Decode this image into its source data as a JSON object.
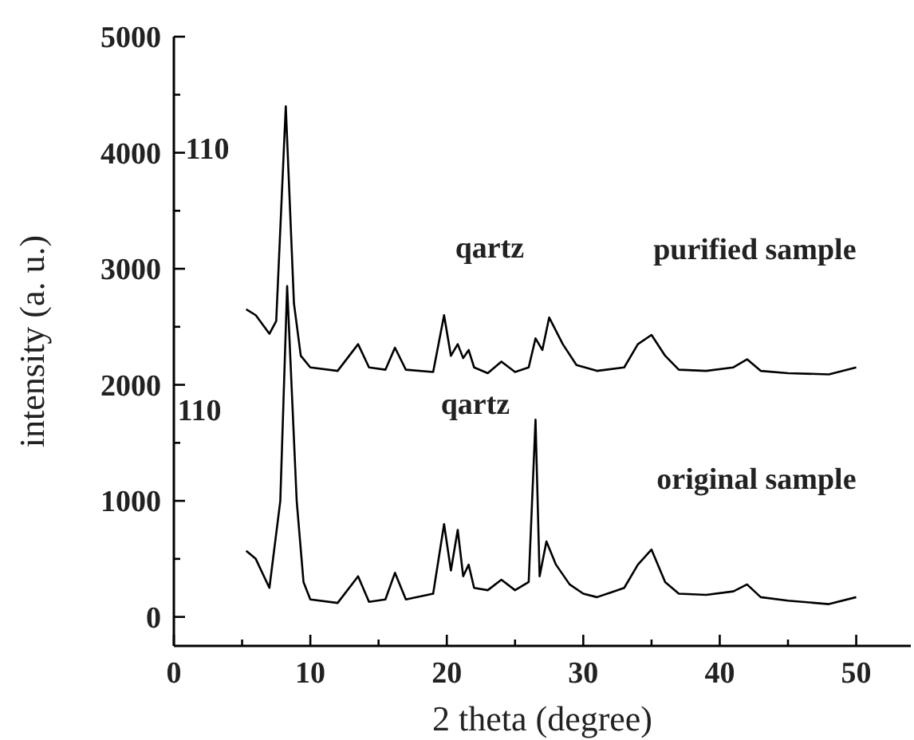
{
  "chart_data": {
    "type": "line",
    "xlabel": "2 theta (degree)",
    "ylabel": "intensity (a. u.)",
    "xlim": [
      0,
      54
    ],
    "xticks": [
      0,
      {
        "value": 5,
        "label": null
      },
      10,
      {
        "value": 15,
        "label": null
      },
      20,
      {
        "value": 25,
        "label": null
      },
      30,
      {
        "value": 35,
        "label": null
      },
      40,
      {
        "value": 45,
        "label": null
      },
      50
    ],
    "ylim": [
      -250,
      5000
    ],
    "yticks": [
      0,
      {
        "value": 500,
        "label": null
      },
      1000,
      {
        "value": 1500,
        "label": null
      },
      2000,
      {
        "value": 2500,
        "label": null
      },
      3000,
      {
        "value": 3500,
        "label": null
      },
      4000,
      {
        "value": 4500,
        "label": null
      },
      5000
    ],
    "grid": false,
    "marker": "none",
    "line_style": "solid",
    "series": [
      {
        "name": "purified sample",
        "color": "#000000",
        "x": [
          5.3,
          6,
          7,
          7.5,
          8.2,
          8.8,
          9.3,
          10,
          12,
          13.5,
          14.3,
          15.5,
          16.2,
          17,
          19,
          19.8,
          20.3,
          20.8,
          21.2,
          21.6,
          22,
          23,
          24,
          25,
          26,
          26.5,
          27,
          27.5,
          28.5,
          29.5,
          31,
          33,
          34,
          35,
          36,
          37,
          39,
          41,
          42,
          43,
          45,
          48,
          50
        ],
        "values": [
          2650,
          2600,
          2440,
          2550,
          4400,
          2700,
          2250,
          2150,
          2120,
          2350,
          2150,
          2130,
          2320,
          2130,
          2110,
          2600,
          2250,
          2350,
          2230,
          2300,
          2150,
          2100,
          2200,
          2110,
          2150,
          2400,
          2300,
          2580,
          2350,
          2170,
          2120,
          2150,
          2350,
          2430,
          2250,
          2130,
          2120,
          2150,
          2220,
          2120,
          2100,
          2090,
          2150
        ]
      },
      {
        "name": "original sample",
        "color": "#000000",
        "x": [
          5.3,
          6,
          7,
          7.8,
          8.3,
          9,
          9.5,
          10,
          12,
          13.5,
          14.3,
          15.5,
          16.2,
          17,
          19,
          19.8,
          20.3,
          20.8,
          21.2,
          21.6,
          22,
          23,
          24,
          25,
          26,
          26.5,
          26.8,
          27.3,
          28,
          29,
          30,
          31,
          33,
          34,
          35,
          36,
          37,
          39,
          41,
          42,
          43,
          45,
          48,
          50
        ],
        "values": [
          570,
          500,
          250,
          1000,
          2850,
          1000,
          300,
          150,
          120,
          350,
          130,
          150,
          380,
          150,
          200,
          800,
          400,
          750,
          350,
          450,
          250,
          230,
          320,
          230,
          300,
          1700,
          350,
          650,
          450,
          280,
          200,
          170,
          250,
          450,
          580,
          300,
          200,
          190,
          220,
          280,
          170,
          140,
          110,
          170
        ]
      }
    ],
    "annotations": [
      "110",
      "110",
      "qartz",
      "qartz"
    ]
  }
}
